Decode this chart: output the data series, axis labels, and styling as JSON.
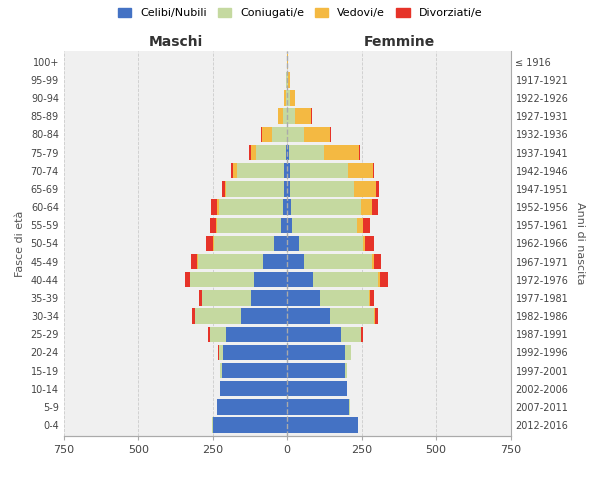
{
  "age_groups": [
    "0-4",
    "5-9",
    "10-14",
    "15-19",
    "20-24",
    "25-29",
    "30-34",
    "35-39",
    "40-44",
    "45-49",
    "50-54",
    "55-59",
    "60-64",
    "65-69",
    "70-74",
    "75-79",
    "80-84",
    "85-89",
    "90-94",
    "95-99",
    "100+"
  ],
  "birth_years": [
    "2012-2016",
    "2007-2011",
    "2002-2006",
    "1997-2001",
    "1992-1996",
    "1987-1991",
    "1982-1986",
    "1977-1981",
    "1972-1976",
    "1967-1971",
    "1962-1966",
    "1957-1961",
    "1952-1956",
    "1947-1951",
    "1942-1946",
    "1937-1941",
    "1932-1936",
    "1927-1931",
    "1922-1926",
    "1917-1921",
    "≤ 1916"
  ],
  "male": {
    "celibi": [
      250,
      235,
      225,
      220,
      215,
      205,
      155,
      120,
      110,
      80,
      45,
      20,
      15,
      10,
      10,
      5,
      0,
      0,
      0,
      0,
      0
    ],
    "coniugati": [
      1,
      2,
      2,
      5,
      15,
      55,
      155,
      165,
      215,
      220,
      200,
      215,
      215,
      195,
      160,
      100,
      50,
      15,
      5,
      3,
      1
    ],
    "vedovi": [
      0,
      0,
      0,
      0,
      0,
      0,
      0,
      1,
      1,
      2,
      3,
      3,
      5,
      5,
      12,
      18,
      35,
      15,
      5,
      1,
      0
    ],
    "divorziati": [
      0,
      0,
      0,
      1,
      2,
      5,
      10,
      10,
      18,
      20,
      25,
      20,
      20,
      10,
      8,
      5,
      2,
      0,
      0,
      0,
      0
    ]
  },
  "female": {
    "nubili": [
      238,
      208,
      200,
      195,
      195,
      180,
      145,
      110,
      85,
      55,
      38,
      15,
      12,
      10,
      10,
      5,
      0,
      0,
      0,
      0,
      0
    ],
    "coniugate": [
      1,
      2,
      2,
      5,
      18,
      68,
      148,
      165,
      220,
      230,
      215,
      220,
      235,
      215,
      195,
      120,
      55,
      25,
      8,
      3,
      1
    ],
    "vedove": [
      0,
      0,
      0,
      0,
      0,
      1,
      2,
      3,
      5,
      6,
      8,
      18,
      38,
      72,
      82,
      115,
      88,
      55,
      18,
      5,
      1
    ],
    "divorziate": [
      0,
      0,
      0,
      1,
      2,
      5,
      10,
      15,
      28,
      25,
      32,
      25,
      20,
      10,
      5,
      5,
      3,
      2,
      1,
      0,
      0
    ]
  },
  "colors": {
    "celibi": "#4472c4",
    "coniugati": "#c5d9a0",
    "vedovi": "#f4b942",
    "divorziati": "#e63329"
  },
  "xlabel_left": "Maschi",
  "xlabel_right": "Femmine",
  "ylabel_left": "Fasce di età",
  "ylabel_right": "Anni di nascita",
  "legend_labels": [
    "Celibi/Nubili",
    "Coniugati/e",
    "Vedovi/e",
    "Divorziati/e"
  ],
  "xlim": 750,
  "bg_color": "#f0f0f0",
  "grid_color": "#cccccc"
}
